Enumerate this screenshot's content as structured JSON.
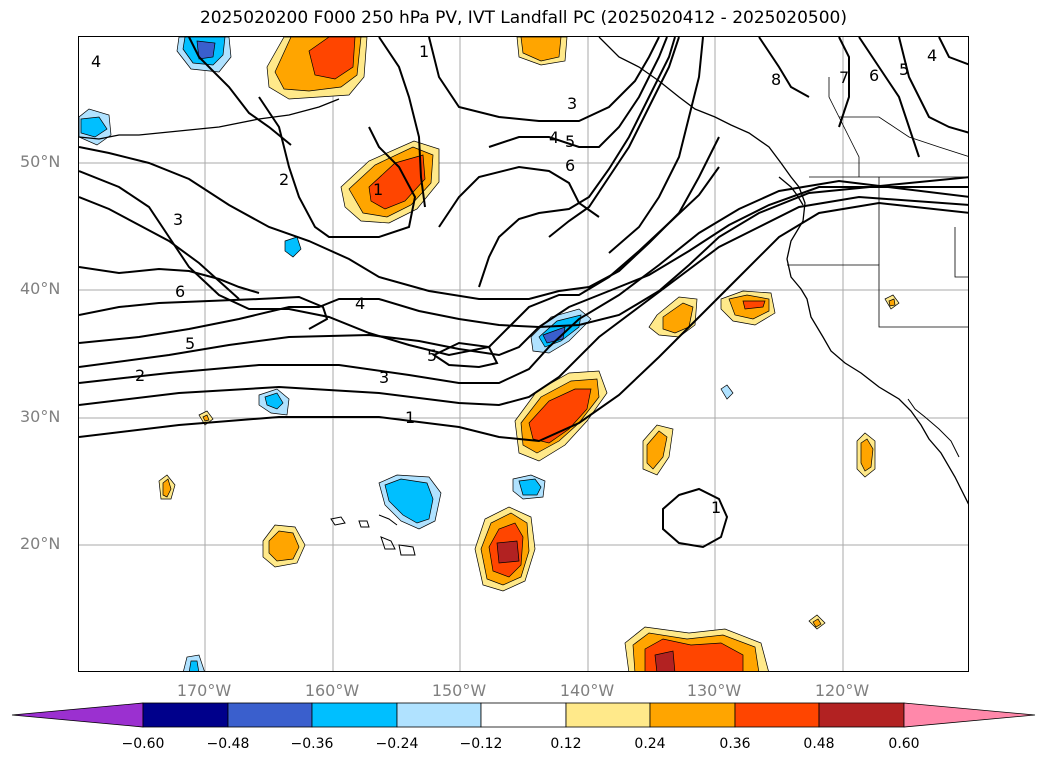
{
  "title": "2025020200 F000 250 hPa PV, IVT Landfall PC (2025020412 - 2025020500)",
  "lat_labels": [
    "50°N",
    "40°N",
    "30°N",
    "20°N"
  ],
  "lon_labels": [
    "170°W",
    "160°W",
    "150°W",
    "140°W",
    "130°W",
    "120°W"
  ],
  "colorbar": {
    "ticks": [
      "−0.60",
      "−0.48",
      "−0.36",
      "−0.24",
      "−0.12",
      "0.12",
      "0.24",
      "0.36",
      "0.48",
      "0.60"
    ],
    "colors": [
      "#9b30d0",
      "#00008b",
      "#3a5fcd",
      "#00bfff",
      "#b0e2ff",
      "#ffffff",
      "#ffe98a",
      "#ffa500",
      "#ff4500",
      "#b22222",
      "#ff88aa"
    ]
  },
  "contour_labels": [
    "4",
    "2",
    "3",
    "6",
    "5",
    "2",
    "4",
    "3",
    "1",
    "5",
    "1",
    "3",
    "4",
    "5",
    "6",
    "8",
    "7",
    "6",
    "5",
    "4",
    "1",
    "1"
  ]
}
